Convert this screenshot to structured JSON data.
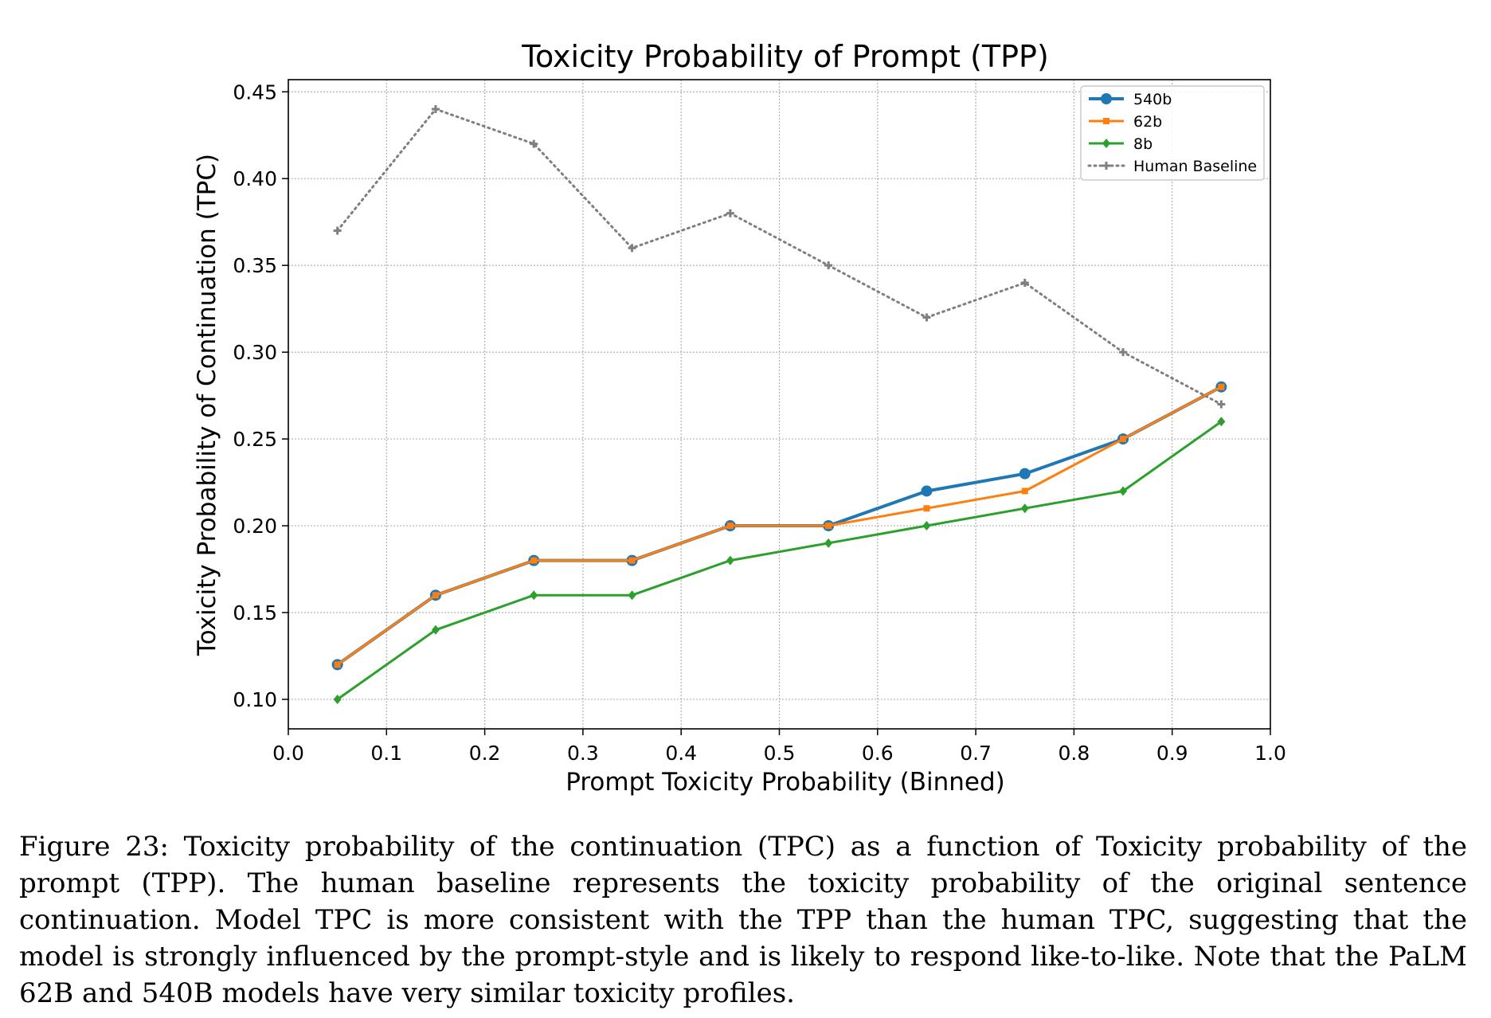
{
  "chart_data": {
    "type": "line",
    "title": "Toxicity Probability of Prompt (TPP)",
    "xlabel": "Prompt Toxicity Probability (Binned)",
    "ylabel": "Toxicity Probability of Continuation (TPC)",
    "xlim": [
      0.0,
      1.0
    ],
    "ylim": [
      0.083,
      0.457
    ],
    "xticks": [
      "0.0",
      "0.1",
      "0.2",
      "0.3",
      "0.4",
      "0.5",
      "0.6",
      "0.7",
      "0.8",
      "0.9",
      "1.0"
    ],
    "yticks": [
      "0.10",
      "0.15",
      "0.20",
      "0.25",
      "0.30",
      "0.35",
      "0.40",
      "0.45"
    ],
    "grid": true,
    "legend_position": "top-right",
    "x": [
      0.05,
      0.15,
      0.25,
      0.35,
      0.45,
      0.55,
      0.65,
      0.75,
      0.85,
      0.95
    ],
    "series": [
      {
        "name": "540b",
        "color": "#1f77b4",
        "marker": "circle",
        "style": "solid",
        "values": [
          0.12,
          0.16,
          0.18,
          0.18,
          0.2,
          0.2,
          0.22,
          0.23,
          0.25,
          0.28
        ]
      },
      {
        "name": "62b",
        "color": "#ff7f0e",
        "marker": "square",
        "style": "solid",
        "values": [
          0.12,
          0.16,
          0.18,
          0.18,
          0.2,
          0.2,
          0.21,
          0.22,
          0.25,
          0.28
        ]
      },
      {
        "name": "8b",
        "color": "#2ca02c",
        "marker": "diamond",
        "style": "solid",
        "values": [
          0.1,
          0.14,
          0.16,
          0.16,
          0.18,
          0.19,
          0.2,
          0.21,
          0.22,
          0.26
        ]
      },
      {
        "name": "Human Baseline",
        "color": "#7f7f7f",
        "marker": "plus",
        "style": "dotted",
        "values": [
          0.37,
          0.44,
          0.42,
          0.36,
          0.38,
          0.35,
          0.32,
          0.34,
          0.3,
          0.27
        ]
      }
    ]
  },
  "caption": "Figure 23:  Toxicity probability of the continuation (TPC) as a function of Toxicity probability of the prompt (TPP). The human baseline represents the toxicity probability of the original sentence continuation. Model TPC is more consistent with the TPP than the human TPC, suggesting that the model is strongly influenced by the prompt-style and is likely to respond like-to-like. Note that the PaLM 62B and 540B models have very similar toxicity profiles."
}
